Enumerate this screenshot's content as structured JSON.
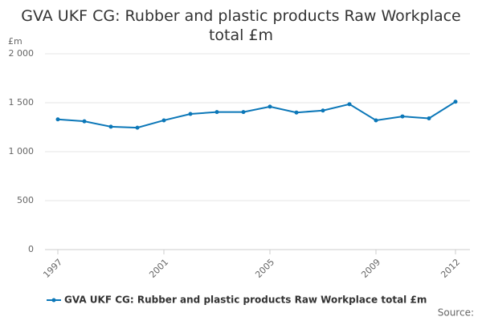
{
  "chart_data": {
    "type": "line",
    "title": "GVA UKF CG: Rubber and plastic products Raw Workplace total £m",
    "y_label": "£m",
    "source": "Source:",
    "x": [
      1997,
      1998,
      1999,
      2000,
      2001,
      2002,
      2003,
      2004,
      2005,
      2006,
      2007,
      2008,
      2009,
      2010,
      2011,
      2012
    ],
    "xlim": [
      1997,
      2012
    ],
    "xticks": [
      1997,
      2001,
      2005,
      2009,
      2012
    ],
    "ylim": [
      0,
      2000
    ],
    "yticks": [
      0,
      500,
      {
        "value": 1000,
        "label": "1 000"
      },
      {
        "value": 1500,
        "label": "1 500"
      },
      {
        "value": 2000,
        "label": "2 000"
      }
    ],
    "grid": true,
    "legend": "bottom",
    "series": [
      {
        "name": "GVA UKF CG: Rubber and plastic products Raw Workplace total £m",
        "color": "#0b77b8",
        "values": [
          1330,
          1310,
          1255,
          1245,
          1320,
          1385,
          1405,
          1405,
          1460,
          1400,
          1420,
          1485,
          1320,
          1360,
          1340,
          1510
        ]
      }
    ]
  }
}
